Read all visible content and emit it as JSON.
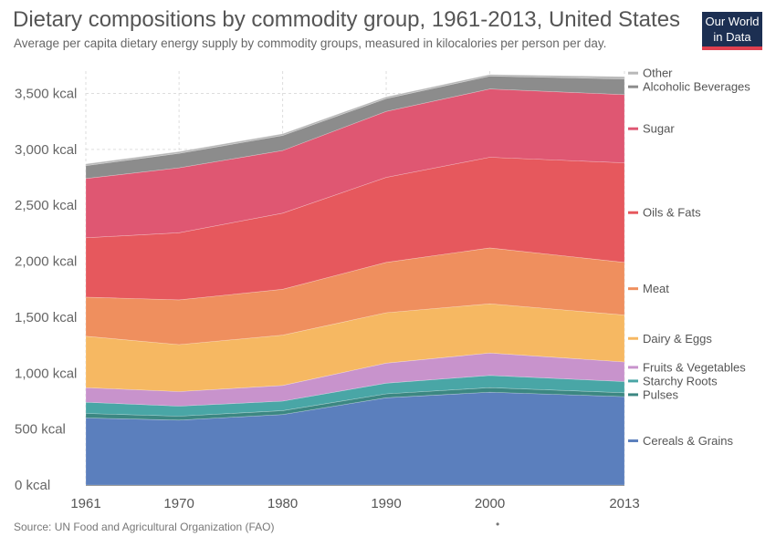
{
  "header": {
    "title": "Dietary compositions by commodity group, 1961-2013, United States",
    "subtitle": "Average per capita dietary energy supply by commodity groups, measured in kilocalories per person per day."
  },
  "logo": {
    "line1": "Our World",
    "line2": "in Data",
    "bg_color": "#1c2f52",
    "accent_color": "#e0404f"
  },
  "footer": {
    "source": "Source: UN Food and Agricultural Organization (FAO)",
    "marker": "•"
  },
  "chart_data": {
    "type": "area",
    "stacked": true,
    "title": "Dietary compositions by commodity group, 1961-2013, United States",
    "subtitle": "Average per capita dietary energy supply by commodity groups, measured in kilocalories per person per day.",
    "xlabel": "",
    "ylabel": "",
    "unit": "kcal",
    "xlim": [
      1961,
      2013
    ],
    "ylim": [
      0,
      3700
    ],
    "x_ticks": [
      "1961",
      "1970",
      "1980",
      "1990",
      "2000",
      "2013"
    ],
    "y_ticks": [
      "0 kcal",
      "500 kcal",
      "1,000 kcal",
      "1,500 kcal",
      "2,000 kcal",
      "2,500 kcal",
      "3,000 kcal",
      "3,500 kcal"
    ],
    "grid": true,
    "legend_position": "right",
    "x": [
      1961,
      1970,
      1980,
      1990,
      2000,
      2013
    ],
    "series": [
      {
        "name": "Cereals & Grains",
        "color": "#5b7fbd",
        "values": [
          600,
          580,
          630,
          780,
          830,
          790
        ]
      },
      {
        "name": "Pulses",
        "color": "#3c8782",
        "values": [
          40,
          35,
          35,
          35,
          40,
          35
        ]
      },
      {
        "name": "Starchy Roots",
        "color": "#49a6a6",
        "values": [
          100,
          90,
          85,
          95,
          110,
          100
        ]
      },
      {
        "name": "Fruits & Vegetables",
        "color": "#c893cc",
        "values": [
          130,
          130,
          140,
          180,
          200,
          175
        ]
      },
      {
        "name": "Dairy & Eggs",
        "color": "#f6b862",
        "values": [
          460,
          420,
          450,
          450,
          440,
          420
        ]
      },
      {
        "name": "Meat",
        "color": "#ef8f5e",
        "values": [
          350,
          400,
          410,
          450,
          500,
          470
        ]
      },
      {
        "name": "Oils & Fats",
        "color": "#e6585d",
        "values": [
          530,
          600,
          680,
          760,
          810,
          890
        ]
      },
      {
        "name": "Sugar",
        "color": "#df5772",
        "values": [
          530,
          580,
          560,
          590,
          610,
          610
        ]
      },
      {
        "name": "Alcoholic Beverages",
        "color": "#8c8c8c",
        "values": [
          115,
          130,
          135,
          115,
          115,
          140
        ]
      },
      {
        "name": "Other",
        "color": "#b8b8b8",
        "values": [
          15,
          15,
          15,
          15,
          15,
          20
        ]
      }
    ]
  }
}
